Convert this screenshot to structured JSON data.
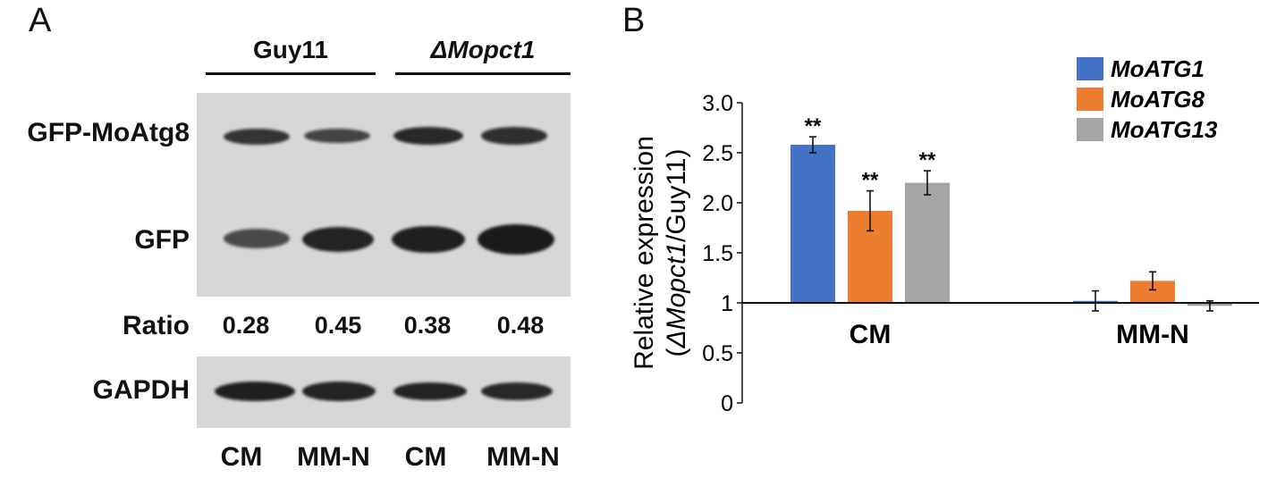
{
  "panelA": {
    "label": "A",
    "groups": [
      {
        "name": "Guy11",
        "italic": false
      },
      {
        "name": "ΔMopct1",
        "italic": true
      }
    ],
    "rows": [
      {
        "label": "GFP-MoAtg8",
        "intensities": [
          0.75,
          0.6,
          0.85,
          0.8
        ]
      },
      {
        "label": "GFP",
        "intensities": [
          0.55,
          0.9,
          0.95,
          1.0
        ]
      }
    ],
    "ratio": {
      "label": "Ratio",
      "values": [
        "0.28",
        "0.45",
        "0.38",
        "0.48"
      ]
    },
    "loading": {
      "label": "GAPDH",
      "intensities": [
        0.95,
        0.9,
        0.9,
        0.85
      ]
    },
    "lanes": [
      "CM",
      "MM-N",
      "CM",
      "MM-N"
    ]
  },
  "panelB": {
    "label": "B"
  },
  "chart_data": {
    "type": "bar",
    "categories": [
      "CM",
      "MM-N"
    ],
    "series": [
      {
        "name": "MoATG1",
        "color": "#4472C4",
        "values": [
          2.58,
          1.02
        ],
        "errors": [
          0.08,
          0.1
        ],
        "significance": [
          "**",
          ""
        ]
      },
      {
        "name": "MoATG8",
        "color": "#ED7D31",
        "values": [
          1.92,
          1.22
        ],
        "errors": [
          0.2,
          0.09
        ],
        "significance": [
          "**",
          ""
        ]
      },
      {
        "name": "MoATG13",
        "color": "#A5A5A5",
        "values": [
          2.2,
          0.97
        ],
        "errors": [
          0.12,
          0.05
        ],
        "significance": [
          "**",
          ""
        ]
      }
    ],
    "ylabel_line1": "Relative expression",
    "ylabel_line2_open": "(",
    "ylabel_line2_italic": "ΔMopct1",
    "ylabel_line2_rest": "/Guy11)",
    "yticks": [
      "0",
      "0.5",
      "1",
      "1.5",
      "2.0",
      "2.5",
      "3.0"
    ],
    "ytick_values": [
      0,
      0.5,
      1,
      1.5,
      2.0,
      2.5,
      3.0
    ],
    "ylim": [
      0,
      3.0
    ],
    "baseline": 1,
    "legend_position": "top-right"
  }
}
